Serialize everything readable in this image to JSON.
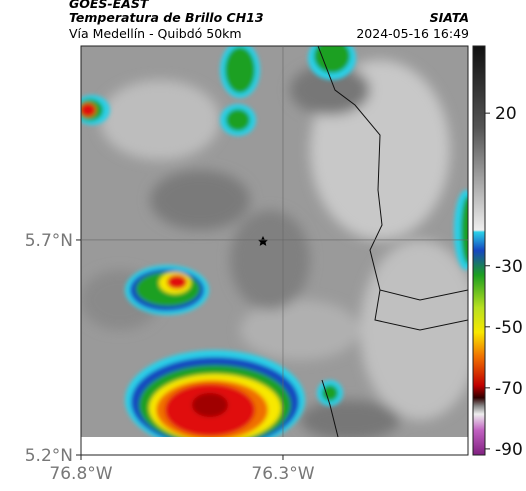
{
  "header": {
    "source": "GOES-EAST",
    "title": "Temperatura de Brillo CH13",
    "subtitle": "Vía Medellín - Quibdó 50km",
    "agency": "SIATA",
    "timestamp": "2024-05-16 16:49"
  },
  "map": {
    "xlim": [
      -76.8,
      -75.842
    ],
    "ylim": [
      5.2,
      6.151
    ],
    "xticks": [
      {
        "value": -76.8,
        "label": "76.8°W"
      },
      {
        "value": -76.3,
        "label": "76.3°W"
      }
    ],
    "yticks": [
      {
        "value": 5.2,
        "label": "5.2°N"
      },
      {
        "value": 5.7,
        "label": "5.7°N"
      }
    ]
  },
  "colorbar": {
    "lim": [
      42,
      -92
    ],
    "ticks": [
      20,
      -30,
      -50,
      -70,
      -90
    ]
  }
}
